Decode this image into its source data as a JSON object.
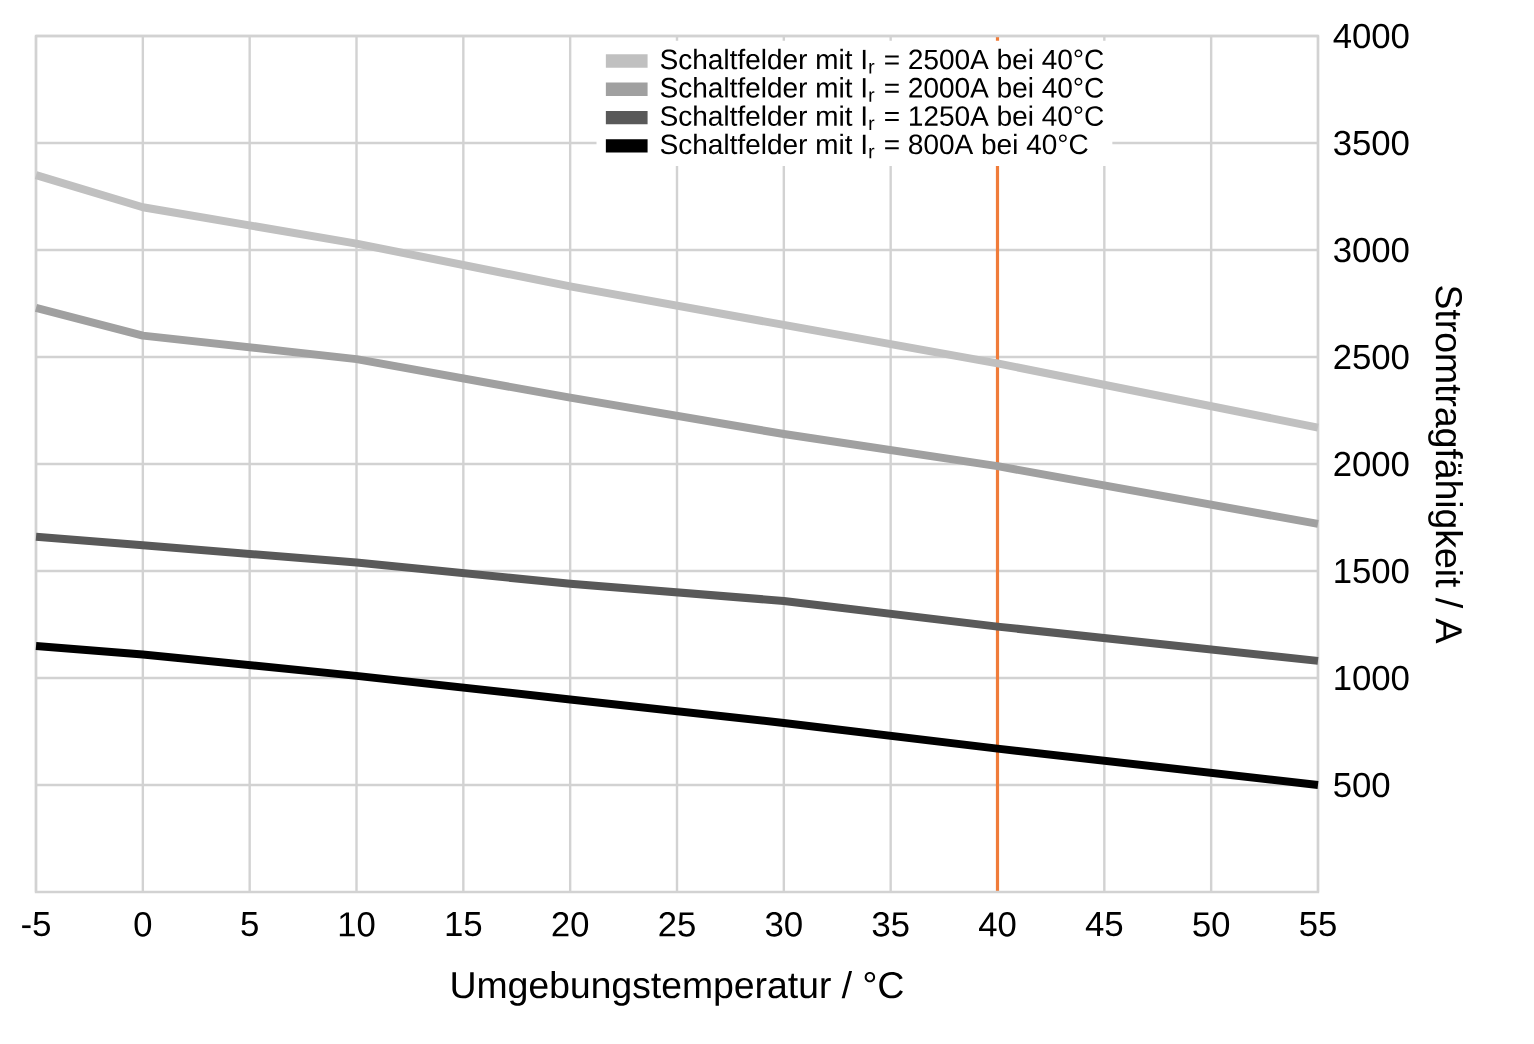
{
  "chart_data": {
    "type": "line",
    "xlabel": "Umgebungstemperatur / °C",
    "ylabel": "Stromtragfähigkeit / A",
    "x": [
      -5,
      0,
      10,
      20,
      30,
      40,
      55
    ],
    "series": [
      {
        "name": "Schaltfelder mit I$_{r}$ = 2500A bei 40°C",
        "color": "#c0c0c0",
        "values": [
          3350,
          3200,
          3030,
          2830,
          2650,
          2470,
          2170
        ]
      },
      {
        "name": "Schaltfelder mit I$_{r}$ = 2000A bei 40°C",
        "color": "#a0a0a0",
        "values": [
          2730,
          2600,
          2490,
          2310,
          2140,
          1990,
          1720
        ]
      },
      {
        "name": "Schaltfelder mit I$_{r}$ = 1250A bei 40°C",
        "color": "#595959",
        "values": [
          1660,
          1620,
          1540,
          1440,
          1360,
          1240,
          1080
        ]
      },
      {
        "name": "Schaltfelder mit I$_{r}$ = 800A bei 40°C",
        "color": "#000000",
        "values": [
          1150,
          1110,
          1010,
          900,
          790,
          670,
          500
        ]
      }
    ],
    "xlim": [
      -5,
      55
    ],
    "xticks": [
      -5,
      0,
      5,
      10,
      15,
      20,
      25,
      30,
      35,
      40,
      45,
      50,
      55
    ],
    "ylim": [
      0,
      4000
    ],
    "yticks": [
      500,
      1000,
      1500,
      2000,
      2500,
      3000,
      3500,
      4000
    ],
    "ref_lines": [
      {
        "axis": "x",
        "value": 40,
        "color": "#f07c3a"
      }
    ],
    "grid": true,
    "legend": "top right",
    "marker": "none",
    "line_style": "solid"
  }
}
